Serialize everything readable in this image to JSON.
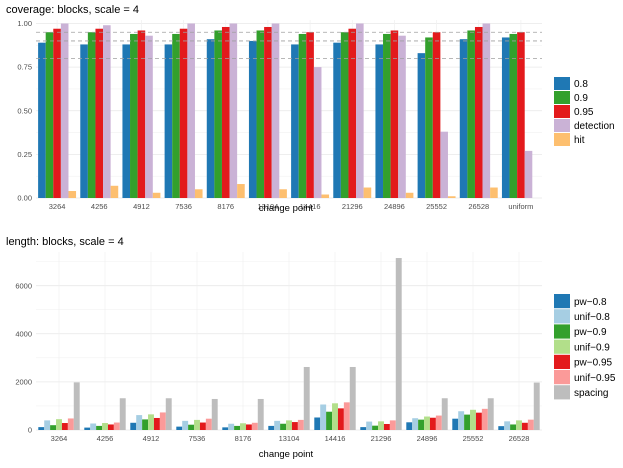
{
  "figure": {
    "background": "#ffffff"
  },
  "chart_data": [
    {
      "type": "bar",
      "title": "coverage: blocks, scale = 4",
      "xlabel": "change point",
      "ylabel": "",
      "ylim": [
        0,
        1.02
      ],
      "y_ticks": [
        "0.00",
        "0.25",
        "0.50",
        "0.75",
        "1.00"
      ],
      "y_tick_values": [
        0,
        0.25,
        0.5,
        0.75,
        1.0
      ],
      "reference_lines": [
        0.8,
        0.9,
        0.95
      ],
      "grid": true,
      "legend_position": "right",
      "categories": [
        "3264",
        "4256",
        "4912",
        "7536",
        "8176",
        "13104",
        "14416",
        "21296",
        "24896",
        "25552",
        "26528",
        "uniform"
      ],
      "series": [
        {
          "name": "0.8",
          "color": "#1f78b4",
          "values": [
            0.89,
            0.88,
            0.88,
            0.88,
            0.91,
            0.9,
            0.88,
            0.89,
            0.88,
            0.83,
            0.91,
            0.92
          ]
        },
        {
          "name": "0.9",
          "color": "#33a02c",
          "values": [
            0.95,
            0.95,
            0.94,
            0.94,
            0.96,
            0.96,
            0.94,
            0.95,
            0.94,
            0.92,
            0.96,
            0.94
          ]
        },
        {
          "name": "0.95",
          "color": "#e31a1c",
          "values": [
            0.97,
            0.97,
            0.96,
            0.97,
            0.98,
            0.98,
            0.95,
            0.97,
            0.96,
            0.95,
            0.98,
            0.95
          ]
        },
        {
          "name": "detection",
          "color": "#cab2d6",
          "values": [
            1.0,
            0.99,
            0.93,
            1.0,
            1.0,
            1.0,
            0.75,
            1.0,
            0.93,
            0.38,
            1.0,
            0.27
          ]
        },
        {
          "name": "hit",
          "color": "#fdbf6f",
          "values": [
            0.04,
            0.07,
            0.03,
            0.05,
            0.08,
            0.05,
            0.02,
            0.06,
            0.03,
            0.01,
            0.06,
            null
          ]
        }
      ]
    },
    {
      "type": "bar",
      "title": "length: blocks, scale = 4",
      "xlabel": "change point",
      "ylabel": "",
      "ylim": [
        0,
        7400
      ],
      "y_ticks": [
        "0",
        "2000",
        "4000",
        "6000"
      ],
      "y_tick_values": [
        0,
        2000,
        4000,
        6000
      ],
      "grid": true,
      "legend_position": "right",
      "categories": [
        "3264",
        "4256",
        "4912",
        "7536",
        "8176",
        "13104",
        "14416",
        "21296",
        "24896",
        "25552",
        "26528"
      ],
      "series": [
        {
          "name": "pw−0.8",
          "color": "#1f78b4",
          "values": [
            120,
            100,
            300,
            140,
            110,
            170,
            520,
            120,
            320,
            470,
            160
          ]
        },
        {
          "name": "unif−0.8",
          "color": "#a6cee3",
          "values": [
            400,
            270,
            620,
            380,
            260,
            380,
            1060,
            350,
            490,
            780,
            360
          ]
        },
        {
          "name": "pw−0.9",
          "color": "#33a02c",
          "values": [
            200,
            170,
            440,
            220,
            170,
            260,
            760,
            180,
            430,
            640,
            230
          ]
        },
        {
          "name": "unif−0.9",
          "color": "#b2df8a",
          "values": [
            450,
            290,
            650,
            420,
            280,
            400,
            1110,
            360,
            560,
            840,
            400
          ]
        },
        {
          "name": "pw−0.95",
          "color": "#e31a1c",
          "values": [
            290,
            230,
            500,
            310,
            230,
            330,
            900,
            250,
            510,
            720,
            300
          ]
        },
        {
          "name": "unif−0.95",
          "color": "#fb9a99",
          "values": [
            480,
            310,
            730,
            470,
            300,
            420,
            1150,
            400,
            600,
            880,
            430
          ]
        },
        {
          "name": "spacing",
          "color": "#bdbdbd",
          "values": [
            1980,
            1320,
            1320,
            1290,
            1290,
            2620,
            2620,
            7150,
            1320,
            1320,
            1970
          ]
        }
      ]
    }
  ]
}
